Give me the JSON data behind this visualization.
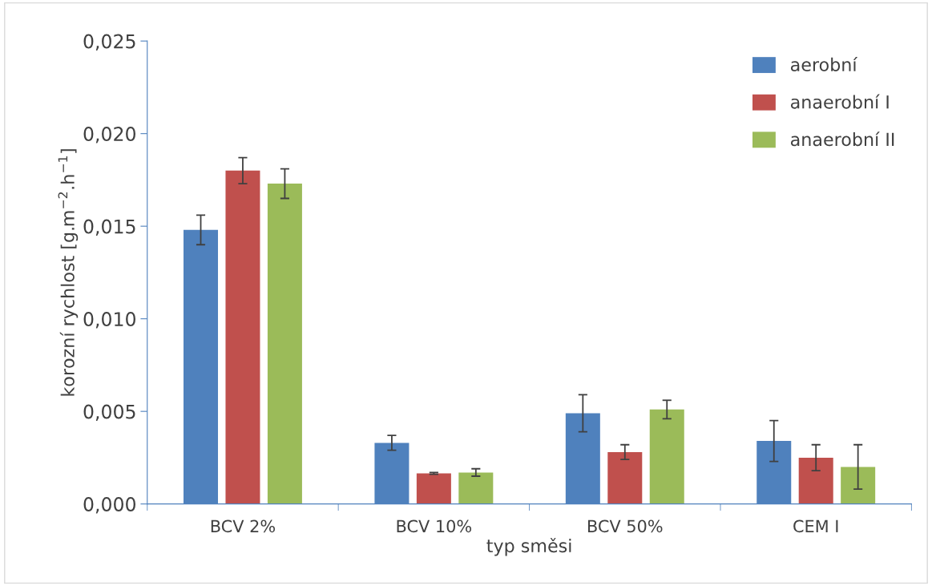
{
  "chart_data": {
    "type": "bar",
    "xlabel": "typ směsi",
    "ylabel": "korozní rychlost [g.m$^{−2}$.h$^{−1}$]",
    "categories": [
      "BCV 2%",
      "BCV 10%",
      "BCV 50%",
      "CEM I"
    ],
    "series": [
      {
        "name": "aerobní",
        "color": "#4f81bd",
        "values": [
          0.0148,
          0.0033,
          0.0049,
          0.0034
        ],
        "errors": [
          0.0008,
          0.0004,
          0.001,
          0.0011
        ]
      },
      {
        "name": "anaerobní I",
        "color": "#c0504d",
        "values": [
          0.018,
          0.00165,
          0.0028,
          0.0025
        ],
        "errors": [
          0.0007,
          5e-05,
          0.0004,
          0.0007
        ]
      },
      {
        "name": "anaerobní II",
        "color": "#9bbb59",
        "values": [
          0.0173,
          0.0017,
          0.0051,
          0.002
        ],
        "errors": [
          0.0008,
          0.0002,
          0.0005,
          0.0012
        ]
      }
    ],
    "ylim": [
      0,
      0.025
    ],
    "yticks": [
      {
        "value": 0,
        "label": "0,000"
      },
      {
        "value": 0.005,
        "label": "0,005"
      },
      {
        "value": 0.01,
        "label": "0,010"
      },
      {
        "value": 0.015,
        "label": "0,015"
      },
      {
        "value": 0.02,
        "label": "0,020"
      },
      {
        "value": 0.025,
        "label": "0,025"
      }
    ],
    "grid": false,
    "legend": "top right"
  }
}
